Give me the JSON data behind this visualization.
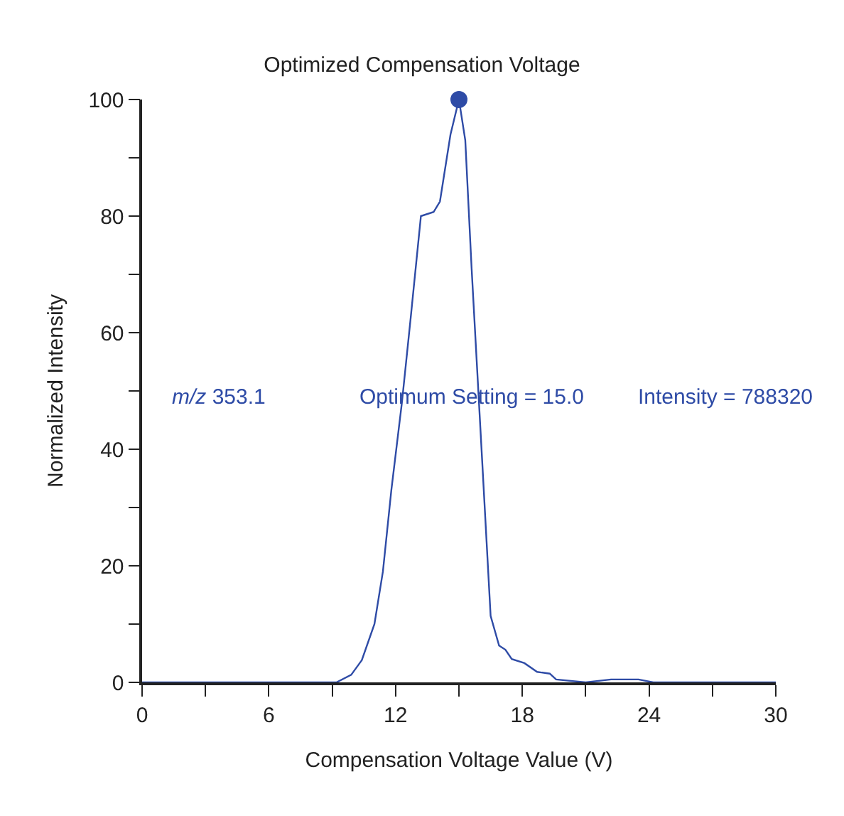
{
  "chart_data": {
    "type": "line",
    "title": "Optimized Compensation Voltage",
    "xlabel": "Compensation Voltage Value (V)",
    "ylabel": "Normalized Intensity",
    "series": [
      {
        "color": "#2e4ba6",
        "marker": "none",
        "x": [
          0,
          9.2,
          9.9,
          10.4,
          11.0,
          11.4,
          11.8,
          12.3,
          12.7,
          13.2,
          13.8,
          14.1,
          14.6,
          15.0,
          15.3,
          15.6,
          16.1,
          16.5,
          16.9,
          17.2,
          17.5,
          18.1,
          18.7,
          19.3,
          19.6,
          21.0,
          22.2,
          23.5,
          24.2,
          30
        ],
        "values": [
          0,
          0,
          1.3,
          3.8,
          10,
          19,
          33,
          48,
          62,
          80,
          80.7,
          82.5,
          94,
          100,
          93,
          71,
          38,
          11.4,
          6.3,
          5.6,
          4,
          3.3,
          1.8,
          1.5,
          0.5,
          0,
          0.5,
          0.5,
          0,
          0
        ]
      },
      {
        "type": "scatter",
        "color": "#2e4ba6",
        "marker": "circle",
        "x": [
          15.0
        ],
        "values": [
          100
        ]
      }
    ],
    "annotations": [
      "m/z 353.1",
      "Optimum Setting = 15.0",
      "Intensity = 788320"
    ],
    "xlim": [
      0,
      30
    ],
    "ylim": [
      0,
      100
    ],
    "xticks": [
      0,
      {
        "value": 3,
        "label": null
      },
      6,
      {
        "value": 9,
        "label": null
      },
      12,
      {
        "value": 15,
        "label": null
      },
      18,
      {
        "value": 21,
        "label": null
      },
      24,
      {
        "value": 27,
        "label": null
      },
      30
    ],
    "yticks": [
      0,
      {
        "value": 10,
        "label": null
      },
      20,
      {
        "value": 30,
        "label": null
      },
      40,
      {
        "value": 50,
        "label": null
      },
      60,
      {
        "value": 70,
        "label": null
      },
      80,
      {
        "value": 90,
        "label": null
      },
      100
    ],
    "tick_labels": "xy"
  }
}
